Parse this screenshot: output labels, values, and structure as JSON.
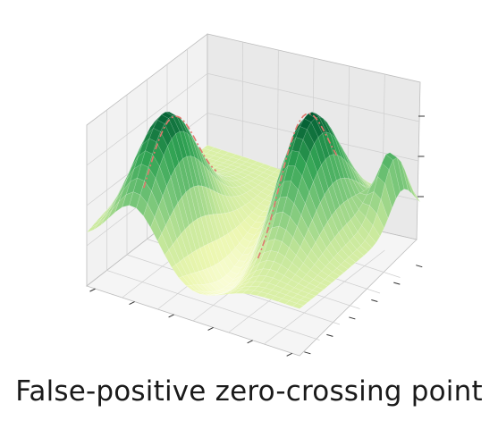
{
  "caption": "False-positive zero-crossing point",
  "chart_data": {
    "type": "surface3d",
    "title": "",
    "xlabel": "",
    "ylabel": "",
    "zlabel": "",
    "tick_labels_shown": false,
    "grid": true,
    "colormap": "Greens (low = pale yellow, high = dark green)",
    "surface_description": "Two Gaussian peaks on a saddle-like surface with a deep trough between them; a small ridge at the far right edge",
    "peaks": [
      {
        "name": "left peak",
        "u": 0.22,
        "v": 0.28,
        "height": 0.9
      },
      {
        "name": "right peak",
        "u": 0.7,
        "v": 0.58,
        "height": 1.0
      }
    ],
    "overlay_line": {
      "style": "dash-dot",
      "color": "#e07a6e",
      "meaning": "zero-crossing"
    },
    "colors": {
      "pane_left": "#f2f2f2",
      "pane_right": "#e9e9e9",
      "pane_floor": "#f5f5f5",
      "grid": "#cfcfcf",
      "overlay": "#e07a6e"
    }
  }
}
